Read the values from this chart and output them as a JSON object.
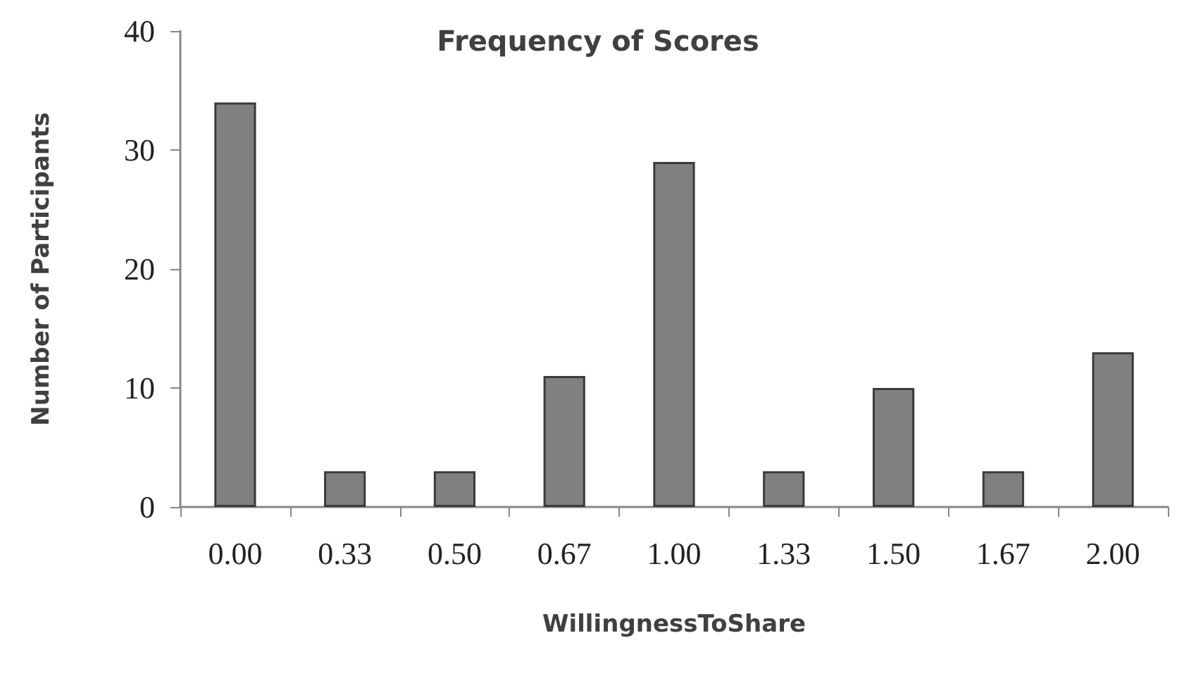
{
  "chart_data": {
    "type": "bar",
    "title": "Frequency of Scores",
    "xlabel": "WillingnessToShare",
    "ylabel": "Number of Participants",
    "categories": [
      "0.00",
      "0.33",
      "0.50",
      "0.67",
      "1.00",
      "1.33",
      "1.50",
      "1.67",
      "2.00"
    ],
    "values": [
      34,
      3,
      3,
      11,
      29,
      3,
      10,
      3,
      13
    ],
    "color": "#808080",
    "ylim": [
      0,
      40
    ],
    "yticks": [
      0,
      10,
      20,
      30,
      40
    ]
  }
}
